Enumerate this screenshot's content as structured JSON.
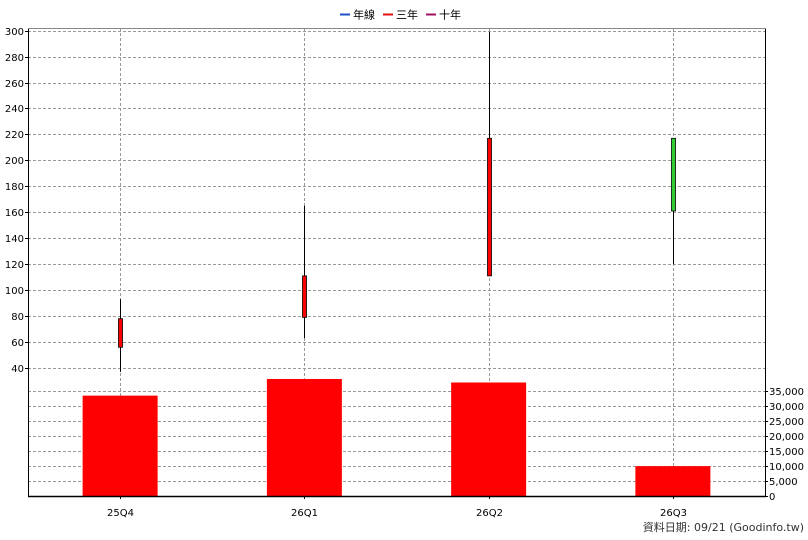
{
  "legend": {
    "items": [
      {
        "label": "年線",
        "color": "#1e50c8"
      },
      {
        "label": "三年",
        "color": "#e01010"
      },
      {
        "label": "十年",
        "color": "#a01060"
      }
    ]
  },
  "footer": {
    "text": "資料日期: 09/21 (Goodinfo.tw)"
  },
  "chart_data": {
    "type": "candlestick+bar",
    "categories": [
      "25Q4",
      "26Q1",
      "26Q2",
      "26Q3"
    ],
    "price": {
      "ylim": [
        30,
        302
      ],
      "ticks": [
        40,
        60,
        80,
        100,
        120,
        140,
        160,
        180,
        200,
        220,
        240,
        260,
        280,
        300
      ],
      "candles": [
        {
          "open": 56,
          "close": 78,
          "high": 93,
          "low": 37,
          "color": "#ff0000"
        },
        {
          "open": 79,
          "close": 111,
          "high": 165,
          "low": 63,
          "color": "#ff0000"
        },
        {
          "open": 111,
          "close": 217,
          "high": 299,
          "low": 111,
          "color": "#ff0000"
        },
        {
          "open": 217,
          "close": 161,
          "high": 217,
          "low": 120,
          "color": "#33cc33"
        }
      ]
    },
    "volume": {
      "ylim": [
        0,
        38500
      ],
      "ticks": [
        0,
        5000,
        10000,
        15000,
        20000,
        25000,
        30000,
        35000
      ],
      "tick_labels": [
        "0",
        "5,000",
        "10,000",
        "15,000",
        "20,000",
        "25,000",
        "30,000",
        "35,000"
      ],
      "values": [
        33600,
        39600,
        38000,
        10000
      ],
      "color": "#ff0000"
    },
    "grid": true,
    "legend_position": "top-center"
  }
}
